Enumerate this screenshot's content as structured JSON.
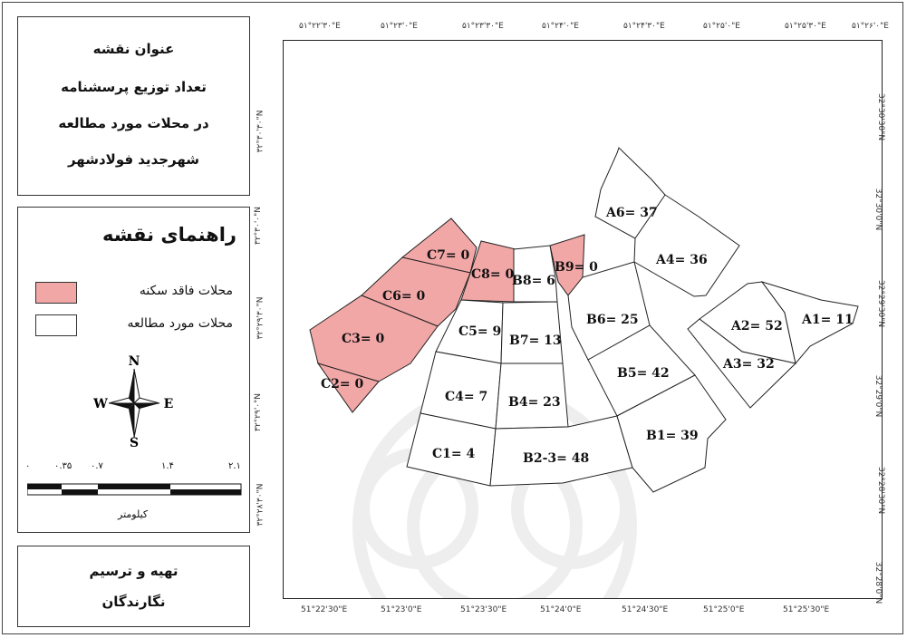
{
  "title_box": {
    "lines": [
      "عنوان نقشه",
      "تعداد توزیع پرسشنامه",
      "در محلات مورد مطالعه",
      "شهرجدید فولادشهر"
    ]
  },
  "legend": {
    "title": "راهنمای نقشه",
    "items": [
      {
        "label": "محلات فاقد سکنه",
        "color": "#f2a7a7"
      },
      {
        "label": "محلات مورد مطالعه",
        "color": "#ffffff"
      }
    ]
  },
  "north_arrow": {
    "n": "N",
    "s": "S",
    "e": "E",
    "w": "W"
  },
  "scale_bar": {
    "ticks": [
      "۰",
      "۰.۳۵",
      "۰.۷",
      "۱.۴",
      "۲.۱"
    ],
    "unit": "کیلومتر"
  },
  "credit_box": {
    "lines": [
      "تهیه و ترسیم",
      "نگارندگان"
    ]
  },
  "coords": {
    "top": [
      "۵۱°۲۲'۳۰\"E",
      "۵۱°۲۳'۰\"E",
      "۵۱°۲۳'۳۰\"E",
      "۵۱°۲۴'۰\"E",
      "۵۱°۲۴'۳۰\"E",
      "۵۱°۲۵'۰\"E",
      "۵۱°۲۵'۳۰\"E",
      "۵۱°۲۶'۰\"E"
    ],
    "bottom": [
      "51°22'30\"E",
      "51°23'0\"E",
      "51°23'30\"E",
      "51°24'0\"E",
      "51°24'30\"E",
      "51°25'0\"E",
      "51°25'30\"E"
    ],
    "left": [
      "۳۲°۳۰'۳۰\"N",
      "۳۲°۳۰'۰\"N",
      "۳۲°۲۹'۳۰\"N",
      "۳۲°۲۹'۰\"N",
      "۳۲°۲۸'۳۰\"N"
    ],
    "right": [
      "32°30'30\"N",
      "32°30'0\"N",
      "32°29'30\"N",
      "32°29'0\"N",
      "32°28'30\"N",
      "32°28'0\"N"
    ]
  },
  "neighborhoods": [
    {
      "label": "C7= 0",
      "uninhabited": true
    },
    {
      "label": "C6= 0",
      "uninhabited": true
    },
    {
      "label": "C3= 0",
      "uninhabited": true
    },
    {
      "label": "C2= 0",
      "uninhabited": true
    },
    {
      "label": "C8= 0",
      "uninhabited": true
    },
    {
      "label": "B9= 0",
      "uninhabited": true
    },
    {
      "label": "B8= 6",
      "uninhabited": false
    },
    {
      "label": "C5= 9",
      "uninhabited": false
    },
    {
      "label": "B7= 13",
      "uninhabited": false
    },
    {
      "label": "C4= 7",
      "uninhabited": false
    },
    {
      "label": "B4= 23",
      "uninhabited": false
    },
    {
      "label": "C1= 4",
      "uninhabited": false
    },
    {
      "label": "B2-3= 48",
      "uninhabited": false
    },
    {
      "label": "B6= 25",
      "uninhabited": false
    },
    {
      "label": "B5= 42",
      "uninhabited": false
    },
    {
      "label": "B1= 39",
      "uninhabited": false
    },
    {
      "label": "A6= 37",
      "uninhabited": false
    },
    {
      "label": "A4= 36",
      "uninhabited": false
    },
    {
      "label": "A2= 52",
      "uninhabited": false
    },
    {
      "label": "A1= 11",
      "uninhabited": false
    },
    {
      "label": "A3= 32",
      "uninhabited": false
    }
  ]
}
